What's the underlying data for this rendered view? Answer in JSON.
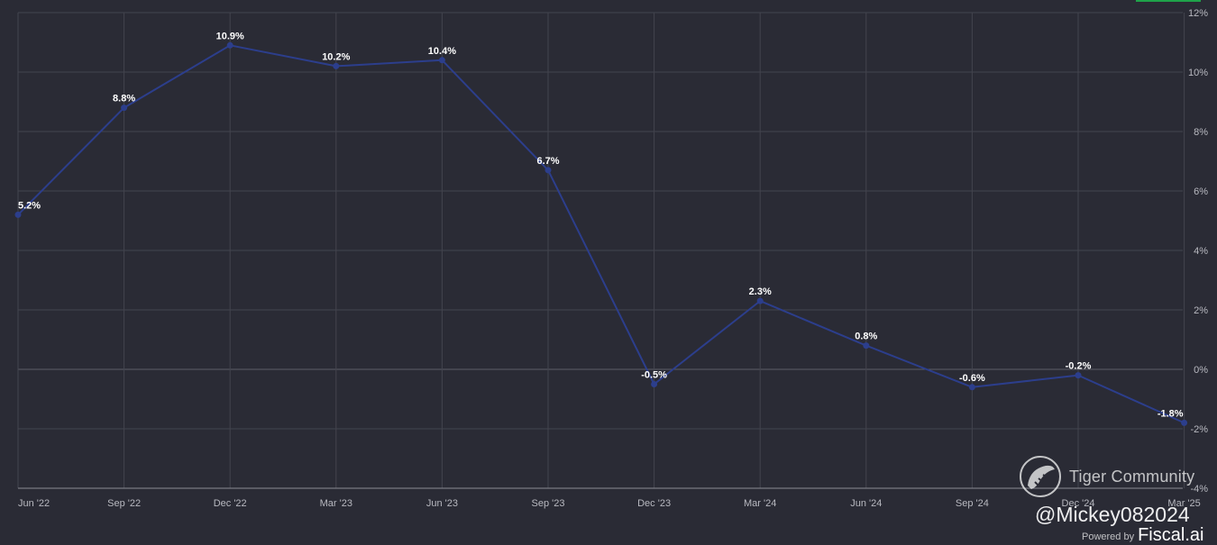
{
  "chart_data": {
    "type": "line",
    "categories": [
      "Jun '22",
      "Sep '22",
      "Dec '22",
      "Mar '23",
      "Jun '23",
      "Sep '23",
      "Dec '23",
      "Mar '24",
      "Jun '24",
      "Sep '24",
      "Dec '24",
      "Mar '25"
    ],
    "series": [
      {
        "values": [
          5.2,
          8.8,
          10.9,
          10.2,
          10.4,
          6.7,
          -0.5,
          2.3,
          0.8,
          -0.6,
          -0.2,
          -1.8
        ],
        "data_labels": [
          "5.2%",
          "8.8%",
          "10.9%",
          "10.2%",
          "10.4%",
          "6.7%",
          "-0.5%",
          "2.3%",
          "0.8%",
          "-0.6%",
          "-0.2%",
          "-1.8%"
        ],
        "color": "#2c3e8c"
      }
    ],
    "y_ticks": [
      12,
      10,
      8,
      6,
      4,
      2,
      0,
      -2,
      -4
    ],
    "y_tick_labels": [
      "12%",
      "10%",
      "8%",
      "6%",
      "4%",
      "2%",
      "0%",
      "-2%",
      "-4%"
    ],
    "ylim": [
      -4,
      12
    ],
    "y_axis_position": "right",
    "grid": true,
    "legend": "none",
    "title": "",
    "xlabel": "",
    "ylabel": ""
  },
  "colors": {
    "background": "#2a2b35",
    "grid": "#43444e",
    "zero_line": "#5c5d66",
    "axis_line": "#8a8b93",
    "line": "#2c3e8c",
    "tick_text": "#b8b9c0",
    "label_text": "#ffffff",
    "accent": "#1fa34a"
  },
  "watermark": {
    "brand": "Tiger Community",
    "logo_icon": "tiger-community-logo-icon",
    "handle": "@Mickey082024",
    "powered_by": "Powered by",
    "powered_brand": "Fiscal.ai"
  }
}
